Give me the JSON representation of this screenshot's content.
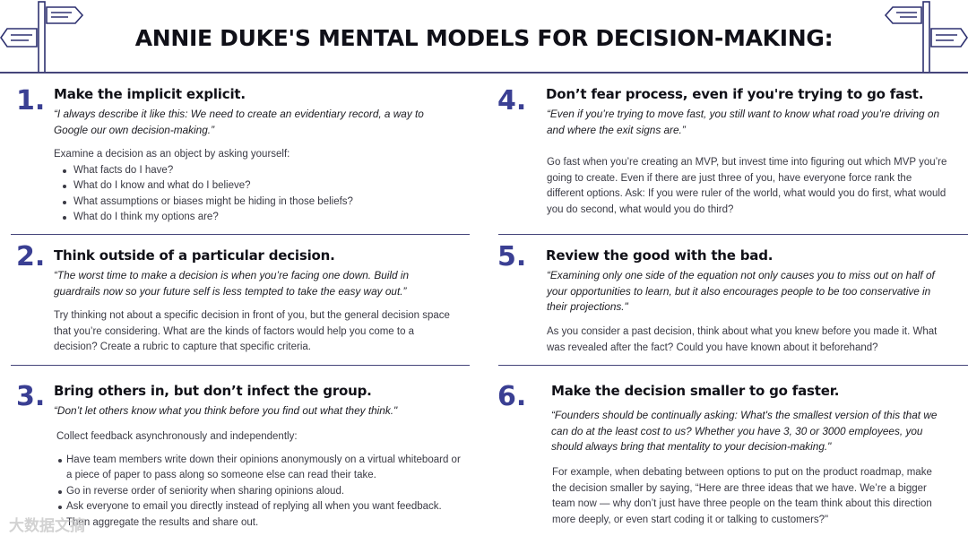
{
  "title": "ANNIE DUKE'S MENTAL MODELS FOR DECISION-MAKING:",
  "sections": [
    {
      "number": "1.",
      "heading": "Make the implicit explicit.",
      "quote": "“I always describe it like this: We need to create an evidentiary record, a way to Google our own decision-making.”",
      "intro": "Examine a decision as an object by asking yourself:",
      "bullets": [
        "What facts do I have?",
        "What do I know and what do I believe?",
        "What assumptions or biases might be hiding in those beliefs?",
        "What do I think my options are?"
      ]
    },
    {
      "number": "2.",
      "heading": "Think outside of a particular decision.",
      "quote": "“The worst time to make a decision is when you’re facing one down. Build in guardrails now so your future self is less tempted to take the easy way out.”",
      "body": "Try thinking not about a specific decision in front of you, but the general decision space that you’re considering. What are the kinds of factors would help you come to a decision? Create a rubric to capture that specific criteria."
    },
    {
      "number": "3.",
      "heading": "Bring others in, but don’t infect the group.",
      "quote": "“Don’t let others know what you think before you find out what they think.\"",
      "intro": "Collect feedback asynchronously and independently:",
      "bullets": [
        "Have team members write down their opinions anonymously on a virtual whiteboard or a piece of paper to pass along so someone else can read their take.",
        "Go in reverse order of seniority when sharing opinions aloud.",
        "Ask everyone to email you directly instead of replying all when you want feedback. Then aggregate the results and share out."
      ]
    },
    {
      "number": "4.",
      "heading": "Don’t fear process, even if you're trying to go fast.",
      "quote": "“Even if you’re trying to move fast, you still want to know what road you’re driving on and where the exit signs are.”",
      "body": "Go fast when you’re creating an MVP, but invest time into figuring out which MVP you’re going to create. Even if there are just three of you, have everyone force rank the different options. Ask: If you were ruler of the world, what would you do first, what would you do second, what would you do third?"
    },
    {
      "number": "5.",
      "heading": "Review the good with the bad.",
      "quote": "“Examining only one side of the equation not only causes you to miss out on half of your opportunities to learn, but it also encourages people to be too conservative in their projections.\"",
      "body": "As you consider a past decision, think about what you knew before you made it. What was revealed after the fact? Could you have known about it beforehand?"
    },
    {
      "number": "6.",
      "heading": "Make the decision smaller to go faster.",
      "quote": "“Founders should be continually asking: What's the smallest version of this that we can do at the least cost to us? Whether you have 3, 30 or 3000 employees, you should always bring that mentality to your decision-making.\"",
      "body": "For example,  when debating between options to put on the product roadmap, make the decision smaller by saying, “Here are three ideas that we have. We’re a bigger team now — why don’t just have three people on the team think about this direction more deeply, or even start coding it or talking to customers?\""
    }
  ],
  "watermark": "大数据文摘",
  "colors": {
    "accent": "#3a3f93",
    "line": "#45457a"
  }
}
